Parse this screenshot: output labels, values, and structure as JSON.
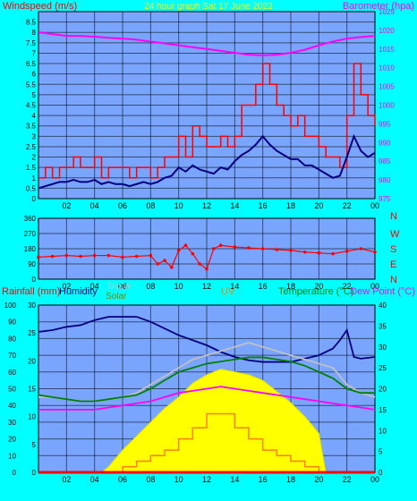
{
  "chart_data": [
    {
      "type": "line",
      "title": "24 hour graph Sat 17 June 2023",
      "ylabel": "Windspeed (m/s)",
      "y2label": "Barometer (hpa)",
      "xticks": [
        "02",
        "04",
        "06",
        "08",
        "10",
        "12",
        "14",
        "16",
        "18",
        "20",
        "22",
        "00"
      ],
      "ylim": [
        0,
        9
      ],
      "yticks": [
        "0",
        "0.5",
        "1",
        "1.5",
        "2",
        "2.5",
        "3",
        "3.5",
        "4",
        "4.5",
        "5",
        "5.5",
        "6",
        "6.5",
        "7",
        "7.5",
        "8",
        "8.5"
      ],
      "y2lim": [
        975,
        1025
      ],
      "y2ticks": [
        "975",
        "980",
        "985",
        "990",
        "995",
        "1000",
        "1005",
        "1010",
        "1015",
        "1020",
        "1025"
      ],
      "grid": true,
      "series": [
        {
          "key": "gust",
          "color": "#ff0000",
          "axis": "left",
          "x": [
            0,
            0.5,
            1,
            1.5,
            2,
            2.5,
            3,
            3.5,
            4,
            4.5,
            5,
            5.5,
            6,
            6.5,
            7,
            7.5,
            8,
            8.5,
            9,
            9.5,
            10,
            10.5,
            11,
            11.5,
            12,
            12.5,
            13,
            13.5,
            14,
            14.5,
            15,
            15.5,
            16,
            16.5,
            17,
            17.5,
            18,
            18.5,
            19,
            19.5,
            20,
            20.5,
            21,
            21.5,
            22,
            22.5,
            23,
            23.5,
            24
          ],
          "values": [
            1.0,
            1.5,
            1.0,
            1.5,
            1.5,
            2.0,
            1.5,
            1.5,
            2.0,
            1.0,
            1.5,
            1.5,
            1.5,
            1.0,
            1.5,
            1.5,
            1.0,
            1.5,
            2.0,
            2.0,
            3.0,
            2.0,
            3.5,
            3.0,
            2.5,
            2.5,
            3.0,
            2.5,
            3.0,
            4.5,
            4.5,
            5.5,
            6.5,
            5.5,
            4.5,
            4.0,
            3.5,
            4.0,
            3.0,
            3.0,
            2.5,
            2.0,
            2.0,
            1.5,
            4.0,
            6.5,
            5.0,
            4.0,
            3.5
          ]
        },
        {
          "key": "wind",
          "color": "#000080",
          "axis": "left",
          "x": [
            0,
            0.5,
            1,
            1.5,
            2,
            2.5,
            3,
            3.5,
            4,
            4.5,
            5,
            5.5,
            6,
            6.5,
            7,
            7.5,
            8,
            8.5,
            9,
            9.5,
            10,
            10.5,
            11,
            11.5,
            12,
            12.5,
            13,
            13.5,
            14,
            14.5,
            15,
            15.5,
            16,
            16.5,
            17,
            17.5,
            18,
            18.5,
            19,
            19.5,
            20,
            20.5,
            21,
            21.5,
            22,
            22.5,
            23,
            23.5,
            24
          ],
          "values": [
            0.5,
            0.6,
            0.7,
            0.8,
            0.8,
            0.9,
            0.8,
            0.8,
            0.9,
            0.7,
            0.8,
            0.7,
            0.7,
            0.6,
            0.7,
            0.8,
            0.7,
            0.8,
            1.0,
            1.1,
            1.5,
            1.3,
            1.6,
            1.4,
            1.3,
            1.2,
            1.5,
            1.4,
            1.8,
            2.1,
            2.3,
            2.6,
            3.0,
            2.6,
            2.3,
            2.1,
            1.9,
            1.9,
            1.6,
            1.6,
            1.4,
            1.2,
            1.0,
            1.1,
            2.0,
            3.0,
            2.3,
            2.0,
            2.2
          ]
        },
        {
          "key": "baro",
          "color": "#ff00ff",
          "axis": "right",
          "x": [
            0,
            1,
            2,
            3,
            4,
            5,
            6,
            7,
            8,
            9,
            10,
            11,
            12,
            13,
            14,
            15,
            16,
            17,
            18,
            19,
            20,
            21,
            22,
            23,
            24
          ],
          "values": [
            1019.5,
            1019.0,
            1018.5,
            1018.5,
            1018.3,
            1018.0,
            1017.8,
            1017.5,
            1017.0,
            1016.5,
            1016.0,
            1015.5,
            1015.0,
            1014.5,
            1014.0,
            1013.5,
            1013.3,
            1013.5,
            1014.0,
            1014.8,
            1016.0,
            1017.0,
            1017.8,
            1018.2,
            1018.5
          ]
        }
      ]
    },
    {
      "type": "scatter",
      "ylim": [
        0,
        360
      ],
      "yticks": [
        "0",
        "90",
        "180",
        "270",
        "360"
      ],
      "compass": [
        "N",
        "W",
        "S",
        "E",
        "N"
      ],
      "xticks": [
        "02",
        "04",
        "06",
        "08",
        "10",
        "12",
        "14",
        "16",
        "18",
        "20",
        "22",
        "00"
      ],
      "grid": true,
      "series": [
        {
          "key": "direction",
          "color": "#ff0000",
          "x": [
            0,
            1,
            2,
            3,
            4,
            5,
            6,
            7,
            8,
            8.5,
            9,
            9.5,
            10,
            10.5,
            11,
            11.5,
            12,
            12.5,
            13,
            14,
            15,
            16,
            17,
            18,
            19,
            20,
            21,
            22,
            23,
            24
          ],
          "values": [
            130,
            135,
            140,
            135,
            140,
            140,
            130,
            135,
            140,
            90,
            110,
            70,
            170,
            200,
            150,
            90,
            60,
            180,
            200,
            190,
            185,
            180,
            175,
            170,
            160,
            155,
            150,
            165,
            180,
            160
          ]
        }
      ]
    },
    {
      "type": "line",
      "labels": [
        "Rainfall (mm)",
        "Humidity",
        "THSW",
        "Solar",
        "UV",
        "Temperature (°C)",
        "Dew Point (°C)"
      ],
      "xticks": [
        "02",
        "04",
        "06",
        "08",
        "10",
        "12",
        "14",
        "16",
        "18",
        "20",
        "22",
        "00"
      ],
      "ylim": [
        0,
        100
      ],
      "yticks": [
        "0",
        "10",
        "20",
        "30",
        "40",
        "50",
        "60",
        "70",
        "80",
        "90",
        "100"
      ],
      "y2lim": [
        0,
        30
      ],
      "y2ticks": [
        "0",
        "5",
        "10",
        "15",
        "20",
        "25",
        "30"
      ],
      "y3lim": [
        0,
        40
      ],
      "y3ticks": [
        "0",
        "5",
        "10",
        "15",
        "20",
        "25",
        "30",
        "35",
        "40"
      ],
      "grid": true,
      "series": [
        {
          "key": "solar",
          "color": "#ffff00",
          "axis": "right",
          "x": [
            0,
            4.5,
            5,
            6,
            7,
            8,
            9,
            10,
            11,
            12,
            13,
            14,
            15,
            16,
            17,
            18,
            19,
            20,
            20.5,
            24
          ],
          "values": [
            0,
            0,
            1.0,
            4.0,
            6.5,
            9.0,
            11.5,
            13.5,
            16.0,
            17.5,
            18.5,
            18.0,
            17.5,
            16.5,
            14.5,
            12.5,
            10.0,
            7.0,
            0,
            0
          ]
        },
        {
          "key": "uv",
          "color": "#ff8000",
          "axis": "right",
          "x": [
            0,
            5.5,
            6,
            7,
            8,
            9,
            10,
            11,
            12,
            13,
            14,
            15,
            16,
            17,
            18,
            19,
            20,
            24
          ],
          "values": [
            0,
            0,
            1.0,
            2.0,
            3.0,
            4.0,
            6.0,
            8.0,
            10.5,
            10.5,
            8.0,
            6.0,
            4.0,
            3.0,
            2.0,
            1.0,
            0,
            0
          ]
        },
        {
          "key": "humidity",
          "color": "#000080",
          "axis": "left",
          "x": [
            0,
            1,
            2,
            3,
            4,
            5,
            6,
            7,
            8,
            9,
            10,
            11,
            12,
            13,
            14,
            15,
            16,
            17,
            18,
            19,
            20,
            21,
            21.5,
            22,
            22.5,
            23,
            24
          ],
          "values": [
            84,
            85,
            87,
            88,
            91,
            93,
            93,
            93,
            90,
            86,
            82,
            79,
            76,
            72,
            69,
            67,
            66,
            66,
            66,
            68,
            70,
            74,
            79,
            85,
            69,
            68,
            69
          ]
        },
        {
          "key": "thsw",
          "color": "#c0c0c0",
          "axis": "far",
          "x": [
            0,
            1,
            2,
            3,
            4,
            5,
            6,
            7,
            8,
            9,
            10,
            11,
            12,
            13,
            14,
            15,
            16,
            17,
            18,
            19,
            20,
            21,
            22,
            23,
            24
          ],
          "values": [
            18,
            18,
            17.5,
            17,
            17,
            17.5,
            18,
            19,
            21,
            23,
            25,
            27,
            28,
            29,
            30,
            31,
            30,
            29,
            28,
            27,
            26,
            25,
            21,
            19,
            18
          ]
        },
        {
          "key": "temp",
          "color": "#008000",
          "axis": "far",
          "x": [
            0,
            1,
            2,
            3,
            4,
            5,
            6,
            7,
            8,
            9,
            10,
            11,
            12,
            13,
            14,
            15,
            16,
            17,
            18,
            19,
            20,
            21,
            22,
            23,
            24
          ],
          "values": [
            18.5,
            18,
            17.5,
            17,
            17,
            17.5,
            18,
            18.5,
            20,
            22,
            24,
            25,
            26,
            26.5,
            27,
            27.5,
            27.5,
            27,
            26.5,
            25.5,
            24,
            22.5,
            20,
            19,
            19
          ]
        },
        {
          "key": "dew",
          "color": "#ff00ff",
          "axis": "far",
          "x": [
            0,
            1,
            2,
            3,
            4,
            5,
            6,
            7,
            8,
            9,
            10,
            11,
            12,
            13,
            14,
            15,
            16,
            17,
            18,
            19,
            20,
            21,
            22,
            23,
            24
          ],
          "values": [
            15,
            15,
            15,
            15,
            15,
            15.5,
            16,
            16.5,
            17,
            18,
            19,
            19.5,
            20,
            20.5,
            20,
            19.5,
            19,
            18.5,
            18,
            17.5,
            17,
            16.5,
            16,
            15.5,
            15
          ]
        },
        {
          "key": "rain",
          "color": "#ff0000",
          "axis": "left",
          "x": [
            0,
            24
          ],
          "values": [
            0,
            0
          ]
        }
      ]
    }
  ]
}
